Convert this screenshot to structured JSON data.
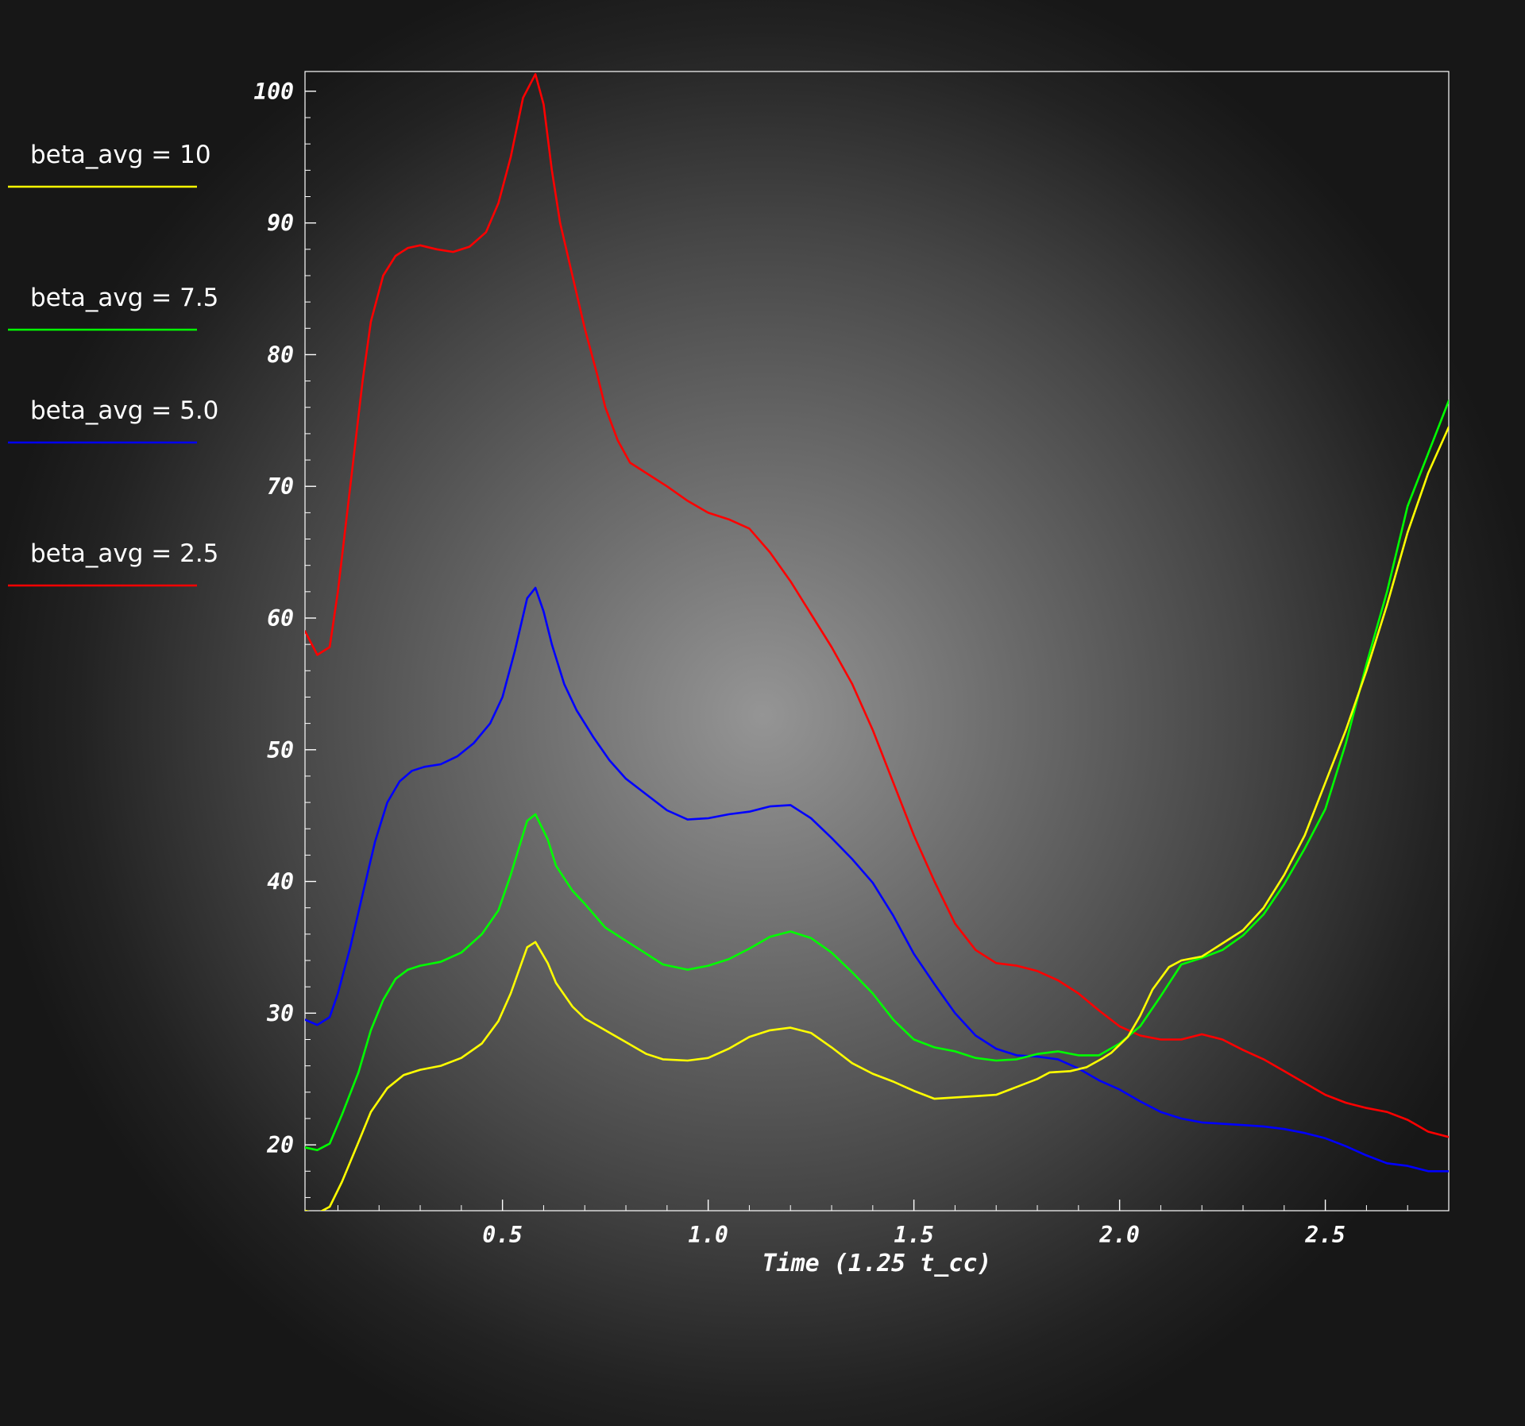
{
  "chart_data": {
    "type": "line",
    "title": "",
    "xlabel": "Time (1.25 t_cc)",
    "ylabel": "",
    "xlim": [
      0.02,
      2.8
    ],
    "ylim": [
      15,
      101.5
    ],
    "x_ticks": [
      0.5,
      1.0,
      1.5,
      2.0,
      2.5
    ],
    "x_tick_labels": [
      "0.5",
      "1.0",
      "1.5",
      "2.0",
      "2.5"
    ],
    "y_ticks": [
      20,
      30,
      40,
      50,
      60,
      70,
      80,
      90,
      100
    ],
    "y_tick_labels": [
      "20",
      "30",
      "40",
      "50",
      "60",
      "70",
      "80",
      "90",
      "100"
    ],
    "grid": false,
    "legend_position": "left",
    "series": [
      {
        "name": "beta_avg = 10",
        "color": "#ffff00",
        "points": [
          [
            0.02,
            15.0
          ],
          [
            0.05,
            14.8
          ],
          [
            0.08,
            15.3
          ],
          [
            0.11,
            17.2
          ],
          [
            0.15,
            20.2
          ],
          [
            0.18,
            22.5
          ],
          [
            0.22,
            24.3
          ],
          [
            0.26,
            25.3
          ],
          [
            0.3,
            25.7
          ],
          [
            0.35,
            26.0
          ],
          [
            0.4,
            26.6
          ],
          [
            0.45,
            27.7
          ],
          [
            0.49,
            29.4
          ],
          [
            0.52,
            31.5
          ],
          [
            0.56,
            35.0
          ],
          [
            0.58,
            35.4
          ],
          [
            0.61,
            33.8
          ],
          [
            0.63,
            32.3
          ],
          [
            0.67,
            30.5
          ],
          [
            0.7,
            29.6
          ],
          [
            0.75,
            28.7
          ],
          [
            0.8,
            27.8
          ],
          [
            0.85,
            26.9
          ],
          [
            0.89,
            26.5
          ],
          [
            0.95,
            26.4
          ],
          [
            1.0,
            26.6
          ],
          [
            1.05,
            27.3
          ],
          [
            1.1,
            28.2
          ],
          [
            1.15,
            28.7
          ],
          [
            1.2,
            28.9
          ],
          [
            1.25,
            28.5
          ],
          [
            1.3,
            27.4
          ],
          [
            1.35,
            26.2
          ],
          [
            1.4,
            25.4
          ],
          [
            1.45,
            24.8
          ],
          [
            1.5,
            24.1
          ],
          [
            1.55,
            23.5
          ],
          [
            1.6,
            23.6
          ],
          [
            1.65,
            23.7
          ],
          [
            1.7,
            23.8
          ],
          [
            1.75,
            24.4
          ],
          [
            1.8,
            25.0
          ],
          [
            1.83,
            25.5
          ],
          [
            1.88,
            25.6
          ],
          [
            1.92,
            25.9
          ],
          [
            1.96,
            26.6
          ],
          [
            1.98,
            27.0
          ],
          [
            2.02,
            28.2
          ],
          [
            2.05,
            29.8
          ],
          [
            2.08,
            31.8
          ],
          [
            2.12,
            33.5
          ],
          [
            2.15,
            34.0
          ],
          [
            2.2,
            34.3
          ],
          [
            2.25,
            35.3
          ],
          [
            2.3,
            36.3
          ],
          [
            2.35,
            38.0
          ],
          [
            2.4,
            40.5
          ],
          [
            2.45,
            43.5
          ],
          [
            2.5,
            47.5
          ],
          [
            2.55,
            51.5
          ],
          [
            2.6,
            56.0
          ],
          [
            2.65,
            61.0
          ],
          [
            2.7,
            66.5
          ],
          [
            2.75,
            71.0
          ],
          [
            2.8,
            74.5
          ]
        ]
      },
      {
        "name": "beta_avg = 7.5",
        "color": "#00ff00",
        "points": [
          [
            0.02,
            19.8
          ],
          [
            0.05,
            19.6
          ],
          [
            0.08,
            20.1
          ],
          [
            0.11,
            22.3
          ],
          [
            0.15,
            25.5
          ],
          [
            0.18,
            28.7
          ],
          [
            0.21,
            31.0
          ],
          [
            0.24,
            32.6
          ],
          [
            0.27,
            33.3
          ],
          [
            0.3,
            33.6
          ],
          [
            0.35,
            33.9
          ],
          [
            0.4,
            34.6
          ],
          [
            0.45,
            36.0
          ],
          [
            0.49,
            37.8
          ],
          [
            0.52,
            40.5
          ],
          [
            0.56,
            44.6
          ],
          [
            0.58,
            45.1
          ],
          [
            0.61,
            43.2
          ],
          [
            0.63,
            41.2
          ],
          [
            0.67,
            39.3
          ],
          [
            0.7,
            38.3
          ],
          [
            0.75,
            36.5
          ],
          [
            0.8,
            35.5
          ],
          [
            0.85,
            34.5
          ],
          [
            0.89,
            33.7
          ],
          [
            0.95,
            33.3
          ],
          [
            1.0,
            33.6
          ],
          [
            1.05,
            34.1
          ],
          [
            1.1,
            34.9
          ],
          [
            1.15,
            35.8
          ],
          [
            1.2,
            36.2
          ],
          [
            1.25,
            35.7
          ],
          [
            1.3,
            34.6
          ],
          [
            1.35,
            33.1
          ],
          [
            1.4,
            31.5
          ],
          [
            1.45,
            29.5
          ],
          [
            1.5,
            28.0
          ],
          [
            1.55,
            27.4
          ],
          [
            1.6,
            27.1
          ],
          [
            1.65,
            26.6
          ],
          [
            1.7,
            26.4
          ],
          [
            1.75,
            26.5
          ],
          [
            1.8,
            26.9
          ],
          [
            1.85,
            27.1
          ],
          [
            1.9,
            26.8
          ],
          [
            1.95,
            26.8
          ],
          [
            2.0,
            27.7
          ],
          [
            2.05,
            29.0
          ],
          [
            2.1,
            31.3
          ],
          [
            2.15,
            33.7
          ],
          [
            2.2,
            34.2
          ],
          [
            2.25,
            34.8
          ],
          [
            2.3,
            35.9
          ],
          [
            2.35,
            37.5
          ],
          [
            2.4,
            39.8
          ],
          [
            2.45,
            42.5
          ],
          [
            2.5,
            45.5
          ],
          [
            2.55,
            50.5
          ],
          [
            2.6,
            56.5
          ],
          [
            2.65,
            62.0
          ],
          [
            2.7,
            68.5
          ],
          [
            2.75,
            72.5
          ],
          [
            2.8,
            76.5
          ]
        ]
      },
      {
        "name": "beta_avg = 5.0",
        "color": "#0000ff",
        "points": [
          [
            0.02,
            29.5
          ],
          [
            0.05,
            29.1
          ],
          [
            0.08,
            29.7
          ],
          [
            0.1,
            31.5
          ],
          [
            0.13,
            35.0
          ],
          [
            0.16,
            39.0
          ],
          [
            0.19,
            43.0
          ],
          [
            0.22,
            46.0
          ],
          [
            0.25,
            47.6
          ],
          [
            0.28,
            48.4
          ],
          [
            0.31,
            48.7
          ],
          [
            0.35,
            48.9
          ],
          [
            0.39,
            49.5
          ],
          [
            0.43,
            50.5
          ],
          [
            0.47,
            52.0
          ],
          [
            0.5,
            54.0
          ],
          [
            0.53,
            57.5
          ],
          [
            0.56,
            61.5
          ],
          [
            0.58,
            62.3
          ],
          [
            0.6,
            60.5
          ],
          [
            0.62,
            58.0
          ],
          [
            0.65,
            55.0
          ],
          [
            0.68,
            53.0
          ],
          [
            0.72,
            51.0
          ],
          [
            0.76,
            49.2
          ],
          [
            0.8,
            47.8
          ],
          [
            0.85,
            46.6
          ],
          [
            0.9,
            45.4
          ],
          [
            0.95,
            44.7
          ],
          [
            1.0,
            44.8
          ],
          [
            1.05,
            45.1
          ],
          [
            1.1,
            45.3
          ],
          [
            1.15,
            45.7
          ],
          [
            1.2,
            45.8
          ],
          [
            1.25,
            44.8
          ],
          [
            1.3,
            43.3
          ],
          [
            1.35,
            41.7
          ],
          [
            1.4,
            39.9
          ],
          [
            1.45,
            37.4
          ],
          [
            1.5,
            34.5
          ],
          [
            1.55,
            32.2
          ],
          [
            1.6,
            30.0
          ],
          [
            1.65,
            28.3
          ],
          [
            1.7,
            27.3
          ],
          [
            1.75,
            26.8
          ],
          [
            1.8,
            26.7
          ],
          [
            1.85,
            26.5
          ],
          [
            1.9,
            25.8
          ],
          [
            1.95,
            24.9
          ],
          [
            2.0,
            24.2
          ],
          [
            2.05,
            23.3
          ],
          [
            2.1,
            22.5
          ],
          [
            2.15,
            22.0
          ],
          [
            2.2,
            21.7
          ],
          [
            2.25,
            21.6
          ],
          [
            2.3,
            21.5
          ],
          [
            2.35,
            21.4
          ],
          [
            2.4,
            21.2
          ],
          [
            2.45,
            20.9
          ],
          [
            2.5,
            20.5
          ],
          [
            2.55,
            19.9
          ],
          [
            2.6,
            19.2
          ],
          [
            2.65,
            18.6
          ],
          [
            2.7,
            18.4
          ],
          [
            2.75,
            18.0
          ],
          [
            2.8,
            18.0
          ]
        ]
      },
      {
        "name": "beta_avg = 2.5",
        "color": "#ff0000",
        "points": [
          [
            0.02,
            59.0
          ],
          [
            0.05,
            57.2
          ],
          [
            0.08,
            57.8
          ],
          [
            0.1,
            62.0
          ],
          [
            0.13,
            70.0
          ],
          [
            0.16,
            78.0
          ],
          [
            0.18,
            82.5
          ],
          [
            0.21,
            86.0
          ],
          [
            0.24,
            87.5
          ],
          [
            0.27,
            88.1
          ],
          [
            0.3,
            88.3
          ],
          [
            0.34,
            88.0
          ],
          [
            0.38,
            87.8
          ],
          [
            0.42,
            88.2
          ],
          [
            0.46,
            89.3
          ],
          [
            0.49,
            91.5
          ],
          [
            0.52,
            95.0
          ],
          [
            0.55,
            99.5
          ],
          [
            0.58,
            101.3
          ],
          [
            0.6,
            99.0
          ],
          [
            0.62,
            94.0
          ],
          [
            0.64,
            90.0
          ],
          [
            0.67,
            86.0
          ],
          [
            0.7,
            82.0
          ],
          [
            0.73,
            78.5
          ],
          [
            0.75,
            76.0
          ],
          [
            0.78,
            73.5
          ],
          [
            0.81,
            71.8
          ],
          [
            0.85,
            71.0
          ],
          [
            0.9,
            70.0
          ],
          [
            0.95,
            68.9
          ],
          [
            1.0,
            68.0
          ],
          [
            1.05,
            67.5
          ],
          [
            1.1,
            66.8
          ],
          [
            1.15,
            65.0
          ],
          [
            1.2,
            62.8
          ],
          [
            1.25,
            60.3
          ],
          [
            1.3,
            57.8
          ],
          [
            1.35,
            55.0
          ],
          [
            1.4,
            51.5
          ],
          [
            1.45,
            47.5
          ],
          [
            1.5,
            43.5
          ],
          [
            1.55,
            40.0
          ],
          [
            1.6,
            36.8
          ],
          [
            1.65,
            34.8
          ],
          [
            1.7,
            33.8
          ],
          [
            1.75,
            33.6
          ],
          [
            1.8,
            33.2
          ],
          [
            1.85,
            32.5
          ],
          [
            1.9,
            31.5
          ],
          [
            1.95,
            30.2
          ],
          [
            2.0,
            29.0
          ],
          [
            2.05,
            28.3
          ],
          [
            2.1,
            28.0
          ],
          [
            2.15,
            28.0
          ],
          [
            2.2,
            28.4
          ],
          [
            2.25,
            28.0
          ],
          [
            2.3,
            27.2
          ],
          [
            2.35,
            26.5
          ],
          [
            2.4,
            25.6
          ],
          [
            2.45,
            24.7
          ],
          [
            2.5,
            23.8
          ],
          [
            2.55,
            23.2
          ],
          [
            2.6,
            22.8
          ],
          [
            2.65,
            22.5
          ],
          [
            2.7,
            21.9
          ],
          [
            2.75,
            21.0
          ],
          [
            2.8,
            20.6
          ]
        ]
      }
    ]
  }
}
